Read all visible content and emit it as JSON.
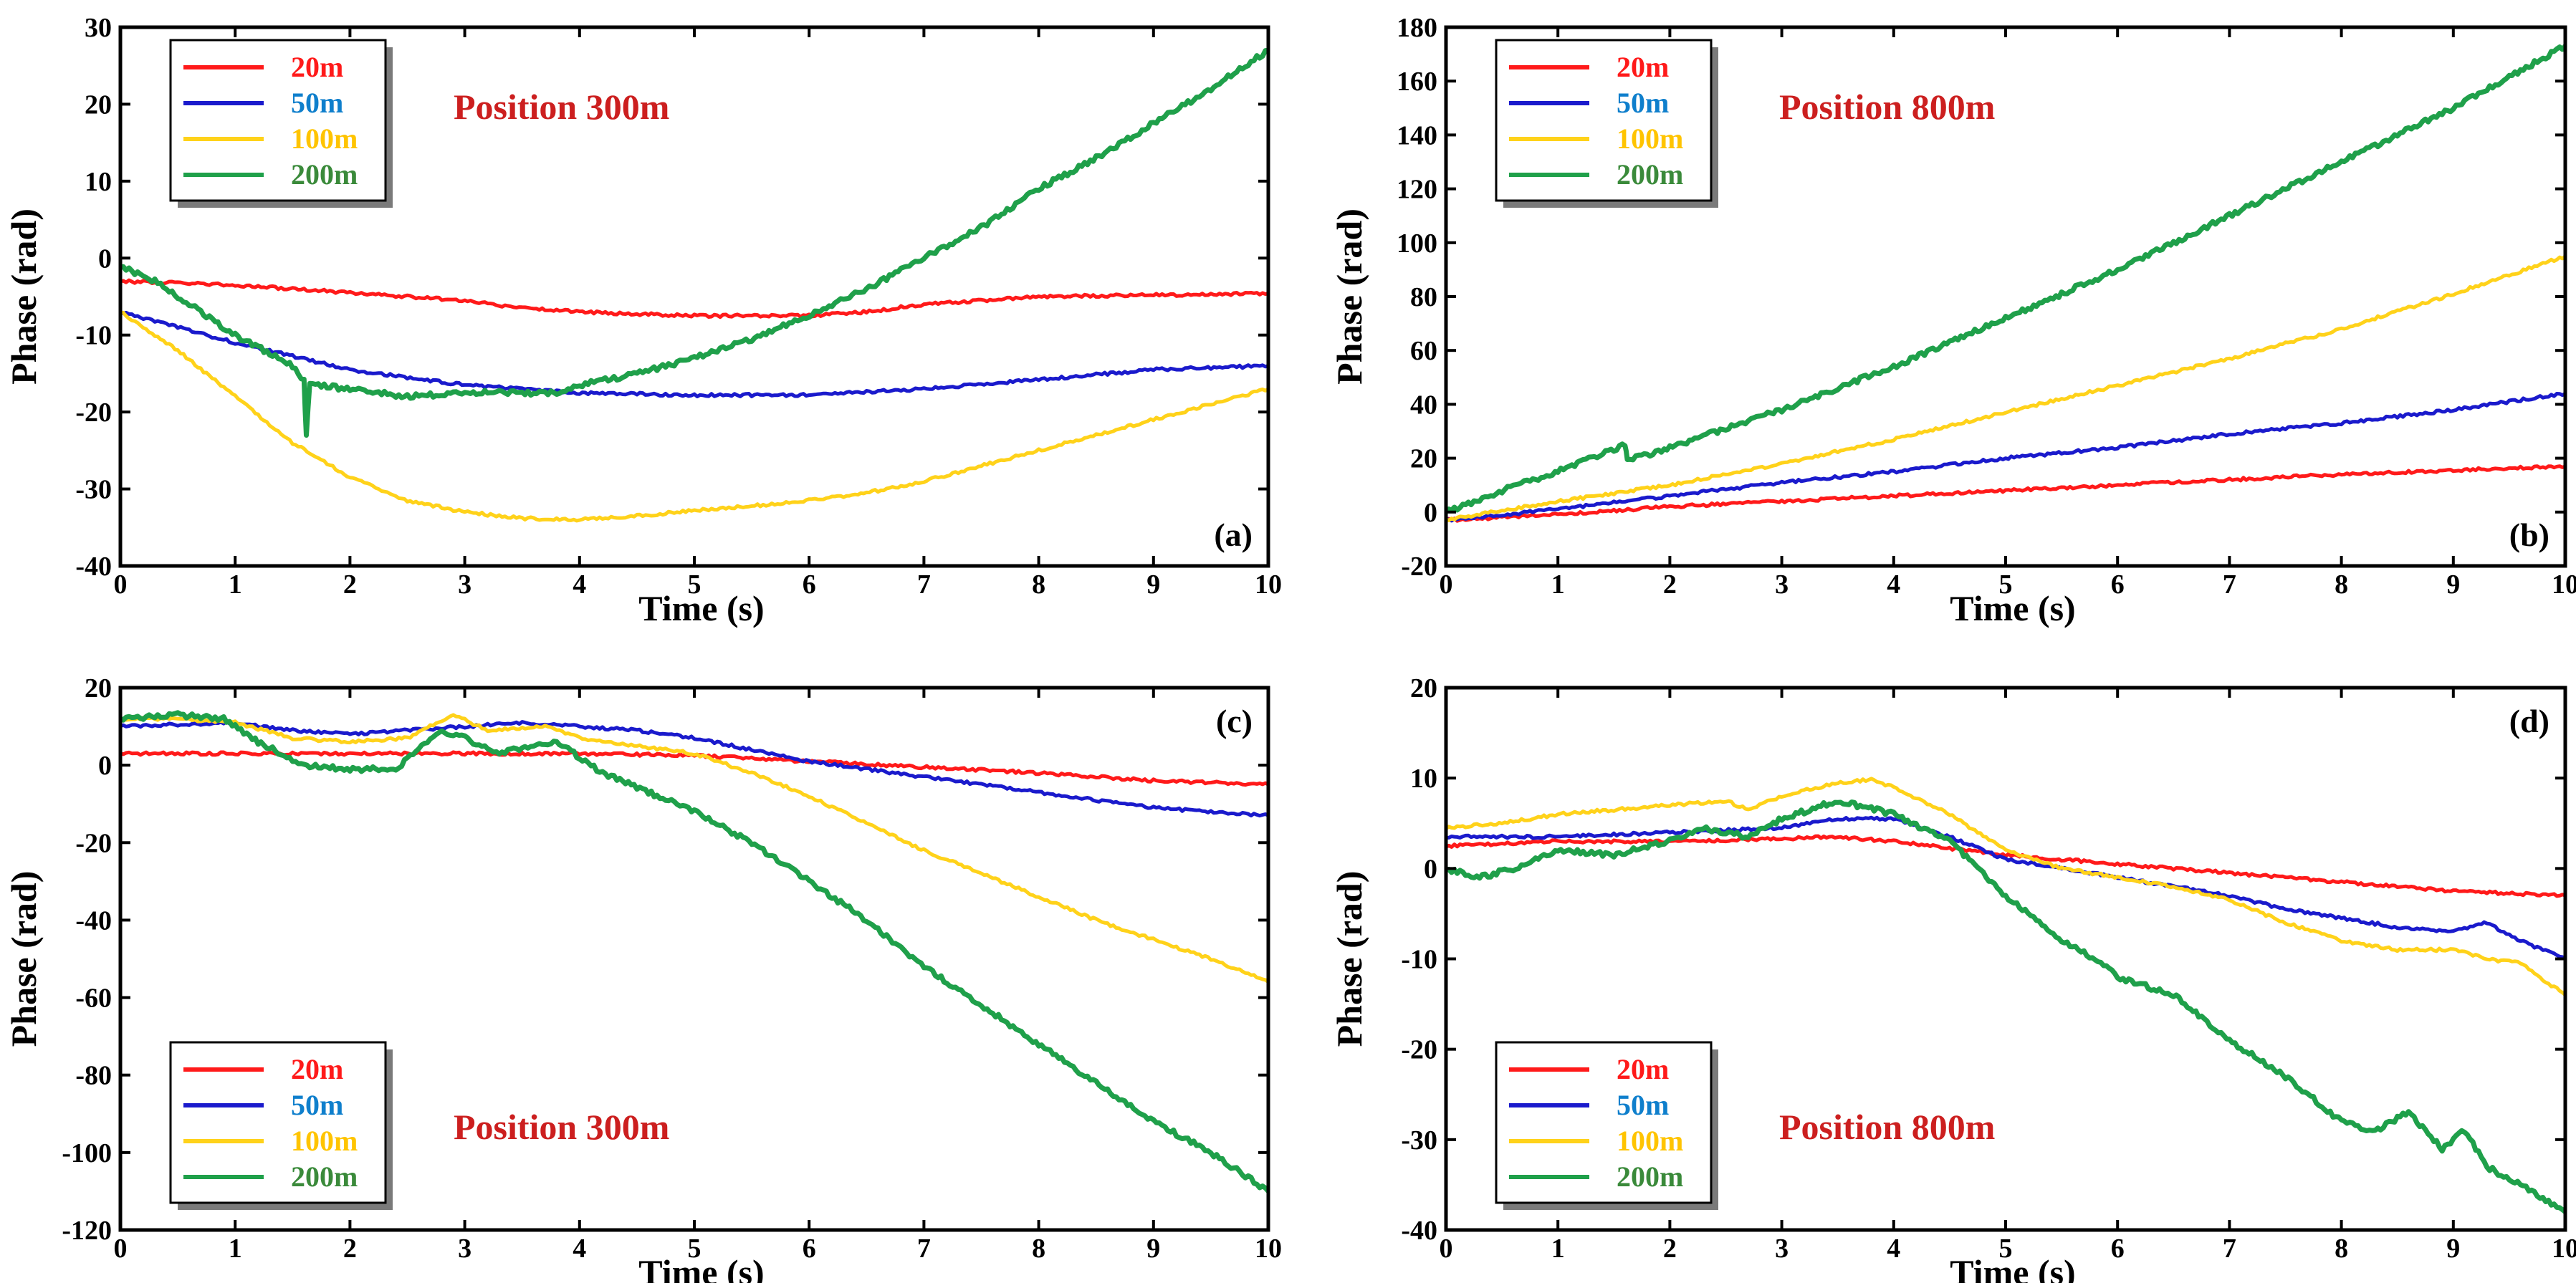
{
  "figure": {
    "series_colors": {
      "20m": "#ff1a1a",
      "50m": "#1a1acc",
      "100m": "#ffd21a",
      "200m": "#1fa04a"
    },
    "legend_text_colors": {
      "20m": "#ff1a1a",
      "50m": "#0f7fcc",
      "100m": "#ffc400",
      "200m": "#3a8a3a"
    },
    "annotation_color": "#cc1f1f"
  },
  "chart_data": [
    {
      "id": "a",
      "type": "line",
      "panel_label": "(a)",
      "annotation": "Position 300m",
      "xlabel": "Time (s)",
      "ylabel": "Phase (rad)",
      "xlim": [
        0,
        10
      ],
      "ylim": [
        -40,
        30
      ],
      "xticks": [
        0,
        1,
        2,
        3,
        4,
        5,
        6,
        7,
        8,
        9,
        10
      ],
      "yticks": [
        -40,
        -30,
        -20,
        -10,
        0,
        10,
        20,
        30
      ],
      "legend_position": "top-left",
      "series": [
        {
          "name": "20m",
          "x": [
            0,
            1,
            2,
            3,
            3.5,
            4,
            5,
            6,
            6.5,
            7,
            8,
            9,
            10
          ],
          "y": [
            -3,
            -3.5,
            -4.5,
            -5.5,
            -6.5,
            -7,
            -7.5,
            -7.5,
            -7,
            -6,
            -5,
            -4.8,
            -4.6
          ]
        },
        {
          "name": "50m",
          "x": [
            0,
            1,
            2,
            3,
            4,
            5,
            6,
            7,
            8,
            9,
            10
          ],
          "y": [
            -7,
            -11,
            -14.5,
            -16.5,
            -17.5,
            -17.8,
            -17.8,
            -17,
            -15.8,
            -14.5,
            -14
          ]
        },
        {
          "name": "100m",
          "x": [
            0,
            0.5,
            1,
            1.5,
            2,
            2.5,
            3,
            3.5,
            4,
            4.5,
            5,
            5.5,
            6,
            6.5,
            7,
            7.5,
            8,
            8.5,
            9,
            9.5,
            10
          ],
          "y": [
            -7,
            -12,
            -18,
            -24,
            -28.5,
            -31.5,
            -33,
            -33.8,
            -34,
            -33.5,
            -32.8,
            -32.2,
            -31.5,
            -30.5,
            -29,
            -27,
            -25,
            -23,
            -21,
            -19,
            -17
          ]
        },
        {
          "name": "200m",
          "x": [
            0,
            0.3,
            0.5,
            1,
            1.5,
            1.6,
            1.62,
            1.65,
            1.7,
            2,
            2.5,
            3,
            3.5,
            3.8,
            4,
            4.5,
            5,
            5.5,
            6,
            6.5,
            7,
            7.5,
            8,
            8.5,
            9,
            9.5,
            10
          ],
          "y": [
            -1,
            -3,
            -5,
            -10,
            -14,
            -16,
            -23,
            -16.5,
            -16.5,
            -17,
            -18,
            -17.5,
            -17.5,
            -17.5,
            -16.5,
            -15,
            -13,
            -10.5,
            -7.5,
            -4,
            0,
            4,
            9,
            13,
            17.5,
            22,
            27
          ]
        }
      ]
    },
    {
      "id": "b",
      "type": "line",
      "panel_label": "(b)",
      "annotation": "Position 800m",
      "xlabel": "Time (s)",
      "ylabel": "Phase (rad)",
      "xlim": [
        0,
        10
      ],
      "ylim": [
        -20,
        180
      ],
      "xticks": [
        0,
        1,
        2,
        3,
        4,
        5,
        6,
        7,
        8,
        9,
        10
      ],
      "yticks": [
        -20,
        0,
        20,
        40,
        60,
        80,
        100,
        120,
        140,
        160,
        180
      ],
      "legend_position": "top-left",
      "series": [
        {
          "name": "20m",
          "x": [
            0,
            1,
            2,
            3,
            4,
            5,
            6,
            7,
            8,
            9,
            10
          ],
          "y": [
            -3,
            -1,
            2,
            4,
            6,
            8,
            10,
            12,
            14,
            15.5,
            17
          ]
        },
        {
          "name": "50m",
          "x": [
            0,
            1,
            2,
            3,
            4,
            5,
            6,
            7,
            8,
            9,
            10
          ],
          "y": [
            -3,
            1,
            6,
            11,
            15,
            20,
            24,
            29,
            33,
            38,
            44
          ]
        },
        {
          "name": "100m",
          "x": [
            0,
            1,
            2,
            3,
            4,
            5,
            6,
            7,
            8,
            9,
            10
          ],
          "y": [
            -3,
            4,
            10,
            18,
            27,
            37,
            47,
            57,
            68,
            81,
            95
          ]
        },
        {
          "name": "200m",
          "x": [
            0,
            0.5,
            1,
            1.6,
            1.62,
            2,
            3,
            4,
            5,
            6,
            7,
            8,
            9,
            10
          ],
          "y": [
            0,
            8,
            15,
            25,
            19,
            24,
            38,
            54,
            72,
            90,
            110,
            130,
            150,
            173
          ]
        }
      ]
    },
    {
      "id": "c",
      "type": "line",
      "panel_label": "(c)",
      "annotation": "Position 300m",
      "xlabel": "Time (s)",
      "ylabel": "Phase (rad)",
      "xlim": [
        0,
        10
      ],
      "ylim": [
        -120,
        20
      ],
      "xticks": [
        0,
        1,
        2,
        3,
        4,
        5,
        6,
        7,
        8,
        9,
        10
      ],
      "yticks": [
        -120,
        -100,
        -80,
        -60,
        -40,
        -20,
        0,
        20
      ],
      "legend_position": "bottom-left",
      "series": [
        {
          "name": "20m",
          "x": [
            0,
            1,
            2,
            3,
            4,
            5,
            6,
            7,
            8,
            9,
            10
          ],
          "y": [
            3,
            3,
            3,
            3,
            3,
            2.5,
            1,
            -0.5,
            -2,
            -4,
            -5
          ]
        },
        {
          "name": "50m",
          "x": [
            0,
            1,
            1.5,
            2,
            2.5,
            3,
            3.5,
            4,
            4.5,
            5,
            5.5,
            6,
            6.5,
            7,
            7.5,
            8,
            8.5,
            9,
            9.5,
            10
          ],
          "y": [
            10,
            11,
            9,
            8,
            9,
            10,
            11,
            10,
            9,
            7,
            4,
            1,
            -1,
            -3,
            -5,
            -7,
            -9,
            -11,
            -12,
            -13
          ]
        },
        {
          "name": "100m",
          "x": [
            0,
            0.5,
            1,
            1.5,
            2,
            2.5,
            2.9,
            3.2,
            3.7,
            4,
            4.5,
            5,
            5.5,
            6,
            6.5,
            7,
            7.5,
            8,
            8.5,
            9,
            9.5,
            10
          ],
          "y": [
            12,
            12,
            11,
            7,
            6,
            7,
            13,
            9,
            10,
            7,
            5,
            3,
            -2,
            -8,
            -15,
            -22,
            -28,
            -34,
            -40,
            -45,
            -50,
            -56
          ]
        },
        {
          "name": "200m",
          "x": [
            0,
            0.5,
            0.9,
            1.2,
            1.6,
            2,
            2.4,
            2.8,
            3.0,
            3.3,
            3.6,
            3.8,
            4.2,
            4.6,
            5,
            5.5,
            6,
            6.5,
            7,
            7.5,
            8,
            8.5,
            9,
            9.5,
            10
          ],
          "y": [
            12,
            13,
            12,
            6,
            0,
            -1,
            -1,
            9,
            7,
            3,
            5,
            6,
            -2,
            -7,
            -12,
            -20,
            -30,
            -40,
            -52,
            -62,
            -72,
            -82,
            -92,
            -100,
            -110
          ]
        }
      ]
    },
    {
      "id": "d",
      "type": "line",
      "panel_label": "(d)",
      "annotation": "Position 800m",
      "xlabel": "Time (s)",
      "ylabel": "Phase (rad)",
      "xlim": [
        0,
        10
      ],
      "ylim": [
        -40,
        20
      ],
      "xticks": [
        0,
        1,
        2,
        3,
        4,
        5,
        6,
        7,
        8,
        9,
        10
      ],
      "yticks": [
        -40,
        -30,
        -20,
        -10,
        0,
        10,
        20
      ],
      "legend_position": "bottom-left",
      "series": [
        {
          "name": "20m",
          "x": [
            0,
            1,
            2,
            3,
            3.5,
            4,
            5,
            6,
            7,
            8,
            9,
            10
          ],
          "y": [
            2.5,
            3,
            3,
            3.3,
            3.5,
            3,
            1.5,
            0.5,
            -0.5,
            -1.5,
            -2.5,
            -3
          ]
        },
        {
          "name": "50m",
          "x": [
            0,
            1,
            2,
            3,
            3.5,
            4,
            4.5,
            5,
            5.5,
            6,
            6.5,
            7,
            7.5,
            8,
            8.5,
            9,
            9.3,
            9.6,
            10
          ],
          "y": [
            3.5,
            3.5,
            4,
            4.5,
            5.5,
            5.5,
            3.5,
            1,
            0,
            -1,
            -2,
            -3,
            -4.5,
            -5.5,
            -6.5,
            -7,
            -6,
            -8,
            -10
          ]
        },
        {
          "name": "100m",
          "x": [
            0,
            0.5,
            1,
            1.5,
            2,
            2.5,
            2.7,
            3,
            3.5,
            3.8,
            4,
            4.5,
            5,
            5.5,
            6,
            6.5,
            7,
            7.5,
            8,
            8.5,
            9,
            9.3,
            9.6,
            10
          ],
          "y": [
            4.5,
            5,
            6,
            6.5,
            7,
            7.5,
            6.5,
            8,
            9.5,
            9.8,
            9,
            6,
            2,
            0,
            -1,
            -2,
            -3.5,
            -6,
            -8,
            -9,
            -9,
            -10,
            -10.5,
            -14
          ]
        },
        {
          "name": "200m",
          "x": [
            0,
            0.3,
            0.6,
            1,
            1.5,
            2,
            2.3,
            2.7,
            3,
            3.5,
            4,
            4.5,
            5,
            5.5,
            5.8,
            6,
            6.5,
            7,
            7.5,
            8,
            8.3,
            8.6,
            8.9,
            9.1,
            9.3,
            9.6,
            10
          ],
          "y": [
            0,
            -1,
            0,
            2,
            1.5,
            3,
            4.5,
            3.5,
            5.5,
            7.5,
            6,
            3,
            -3,
            -8,
            -10,
            -12,
            -14,
            -19,
            -23,
            -28,
            -29,
            -27,
            -31,
            -29,
            -33,
            -35,
            -38
          ]
        }
      ]
    }
  ]
}
